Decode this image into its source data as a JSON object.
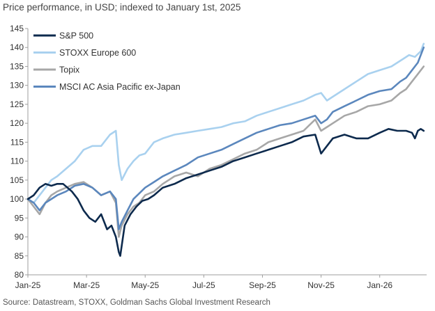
{
  "caption": "Price performance, in USD; indexed to January 1st, 2025",
  "source": "Source: Datastream, STOXX, Goldman Sachs Global Investment Research",
  "colors": {
    "sp500": "#0d2a4d",
    "stoxx": "#a9d1ef",
    "topix": "#a7a7a7",
    "msci": "#5b87bd",
    "axis": "#9e9e9e",
    "text": "#333333"
  },
  "chart_data": {
    "type": "line",
    "title": "Price performance, in USD; indexed to January 1st, 2025",
    "xlabel": "",
    "ylabel": "",
    "ylim": [
      80,
      145
    ],
    "yticks": [
      80,
      85,
      90,
      95,
      100,
      105,
      110,
      115,
      120,
      125,
      130,
      135,
      140,
      145
    ],
    "xlim": [
      0,
      13.6
    ],
    "xtick_positions": [
      0,
      2,
      4,
      6,
      8,
      10,
      12
    ],
    "xtick_labels": [
      "Jan-25",
      "Mar-25",
      "May-25",
      "Jul-25",
      "Sep-25",
      "Nov-25",
      "Jan-26"
    ],
    "grid": false,
    "legend_position": "top-left",
    "series": [
      {
        "name": "S&P 500",
        "color": "#0d2a4d",
        "x": [
          0,
          0.2,
          0.4,
          0.6,
          0.8,
          1.0,
          1.2,
          1.5,
          1.7,
          1.9,
          2.1,
          2.3,
          2.5,
          2.7,
          2.85,
          3.0,
          3.1,
          3.15,
          3.3,
          3.5,
          3.7,
          3.9,
          4.1,
          4.3,
          4.6,
          5.0,
          5.4,
          5.8,
          6.2,
          6.6,
          7.0,
          7.4,
          7.8,
          8.2,
          8.6,
          9.0,
          9.4,
          9.8,
          10.0,
          10.2,
          10.4,
          10.8,
          11.2,
          11.6,
          12.0,
          12.3,
          12.6,
          12.9,
          13.1,
          13.2,
          13.3,
          13.4,
          13.5
        ],
        "values": [
          100,
          101,
          103,
          104,
          103.5,
          104,
          104,
          102,
          100,
          97,
          95,
          94,
          96,
          92,
          93,
          90,
          86,
          85,
          93,
          96,
          98,
          99.5,
          100,
          101,
          103,
          104,
          105.5,
          106.5,
          107.5,
          108.5,
          110,
          111,
          112,
          113,
          114,
          115,
          116.5,
          117,
          112,
          114,
          116,
          117,
          116,
          116,
          117.5,
          118.5,
          118,
          118,
          117.5,
          116,
          118,
          118.5,
          118
        ]
      },
      {
        "name": "STOXX Europe 600",
        "color": "#a9d1ef",
        "x": [
          0,
          0.2,
          0.5,
          0.8,
          1.0,
          1.3,
          1.6,
          1.9,
          2.2,
          2.5,
          2.8,
          3.0,
          3.1,
          3.2,
          3.4,
          3.6,
          3.8,
          4.0,
          4.3,
          4.6,
          5.0,
          5.4,
          5.8,
          6.2,
          6.6,
          7.0,
          7.4,
          7.8,
          8.2,
          8.6,
          9.0,
          9.4,
          9.8,
          10.0,
          10.2,
          10.4,
          10.8,
          11.2,
          11.6,
          12.0,
          12.4,
          12.8,
          13.0,
          13.2,
          13.4,
          13.5
        ],
        "values": [
          100,
          99,
          102,
          105,
          106,
          108,
          110,
          113,
          114,
          114,
          117,
          118,
          109,
          105,
          108,
          110,
          111.5,
          112,
          115,
          116,
          117,
          117.5,
          118,
          118.5,
          119,
          120,
          120.5,
          122,
          123,
          124,
          125,
          126,
          127.5,
          128,
          126,
          127,
          129,
          131,
          133,
          134,
          135,
          137,
          138,
          137.5,
          139,
          141
        ]
      },
      {
        "name": "Topix",
        "color": "#a7a7a7",
        "x": [
          0,
          0.2,
          0.4,
          0.6,
          0.8,
          1.0,
          1.3,
          1.6,
          1.9,
          2.2,
          2.5,
          2.8,
          3.0,
          3.1,
          3.2,
          3.4,
          3.6,
          3.8,
          4.0,
          4.3,
          4.6,
          5.0,
          5.4,
          5.8,
          6.2,
          6.6,
          7.0,
          7.4,
          7.8,
          8.2,
          8.6,
          9.0,
          9.4,
          9.8,
          10.0,
          10.2,
          10.4,
          10.8,
          11.2,
          11.6,
          12.0,
          12.4,
          12.7,
          12.9,
          13.1,
          13.3,
          13.5
        ],
        "values": [
          100,
          98,
          96,
          99,
          101,
          102,
          103,
          104,
          104.5,
          103,
          101,
          102,
          99,
          90,
          93,
          96,
          98,
          99,
          101,
          102,
          104,
          106,
          107,
          106,
          108,
          109,
          110.5,
          112,
          113,
          115,
          116,
          117,
          118,
          121,
          118,
          119,
          120,
          122,
          123,
          124.5,
          125,
          126,
          128,
          129,
          131,
          133,
          135
        ]
      },
      {
        "name": "MSCI AC Asia Pacific ex-Japan",
        "color": "#5b87bd",
        "x": [
          0,
          0.2,
          0.4,
          0.6,
          0.8,
          1.0,
          1.3,
          1.6,
          1.9,
          2.2,
          2.5,
          2.8,
          3.0,
          3.1,
          3.2,
          3.4,
          3.6,
          3.8,
          4.0,
          4.3,
          4.6,
          5.0,
          5.4,
          5.8,
          6.2,
          6.6,
          7.0,
          7.4,
          7.8,
          8.2,
          8.6,
          9.0,
          9.4,
          9.8,
          10.0,
          10.2,
          10.4,
          10.8,
          11.2,
          11.6,
          12.0,
          12.4,
          12.7,
          12.9,
          13.1,
          13.3,
          13.5
        ],
        "values": [
          100,
          99,
          97,
          99,
          100,
          101,
          102,
          103.5,
          104,
          103,
          101,
          102,
          100,
          92,
          94,
          97,
          100,
          101.5,
          103,
          104.5,
          106,
          107.5,
          109,
          111,
          112,
          113,
          114.5,
          116,
          117.5,
          118.5,
          119.5,
          120,
          121,
          122,
          120,
          121,
          123,
          124.5,
          126,
          127.5,
          128.5,
          129,
          131,
          132,
          134,
          136,
          140
        ]
      }
    ]
  }
}
